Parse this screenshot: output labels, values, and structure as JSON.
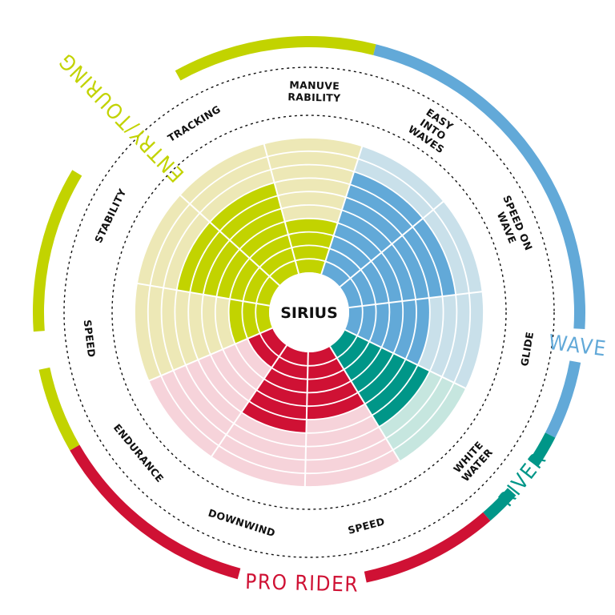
{
  "center_label": "SIRIUS",
  "categories": [
    {
      "key": "wave",
      "label": "WAVE",
      "color": "#62a9d8"
    },
    {
      "key": "river",
      "label": "RIVER",
      "color": "#009688"
    },
    {
      "key": "pro",
      "label": "PRO RIDER",
      "color": "#cf1134"
    },
    {
      "key": "entry",
      "label": "ENTRY/TOURING",
      "color": "#c2d300"
    }
  ],
  "metrics": [
    {
      "lines": [
        "MANUVE",
        "RABILITY"
      ],
      "category": "entry",
      "score": 4
    },
    {
      "lines": [
        "EASY",
        "INTO",
        "WAVES"
      ],
      "category": "wave",
      "score": 8
    },
    {
      "lines": [
        "SPEED ON",
        "WAVE"
      ],
      "category": "wave",
      "score": 8
    },
    {
      "lines": [
        "GLIDE"
      ],
      "category": "wave",
      "score": 6
    },
    {
      "lines": [
        "WHITE",
        "WATER"
      ],
      "category": "river",
      "score": 7
    },
    {
      "lines": [
        "SPEED"
      ],
      "category": "pro",
      "score": 5
    },
    {
      "lines": [
        "DOWNWIND"
      ],
      "category": "pro",
      "score": 6
    },
    {
      "lines": [
        "ENDURANCE"
      ],
      "category": "pro",
      "score": 2
    },
    {
      "lines": [
        "SPEED"
      ],
      "category": "entry",
      "score": 3
    },
    {
      "lines": [
        "STABILITY"
      ],
      "category": "entry",
      "score": 7
    },
    {
      "lines": [
        "TRACKING"
      ],
      "category": "entry",
      "score": 7
    }
  ],
  "scale_max": 10,
  "light_colors": {
    "entry": "#ede8b6",
    "wave": "#c9e0ea",
    "river": "#c6e6df",
    "pro": "#f6d3da"
  }
}
